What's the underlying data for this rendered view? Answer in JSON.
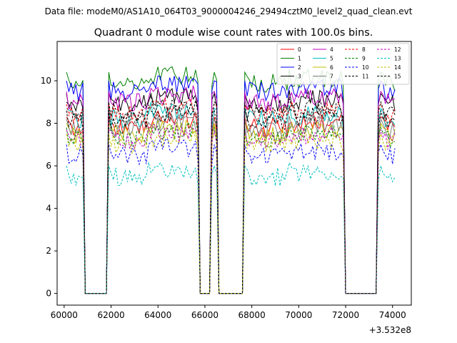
{
  "chart_data": {
    "type": "line",
    "suptitle": "Data file: modeM0/AS1A10_064T03_9000004246_29494cztM0_level2_quad_clean.evt",
    "title": "Quadrant 0 module wise count rates with 100.0s bins.",
    "xlabel": "",
    "ylabel": "",
    "x_offset_label": "+3.532e8",
    "xlim": [
      59700,
      74800
    ],
    "ylim": [
      -0.55,
      11.85
    ],
    "xticks": [
      60000,
      62000,
      64000,
      66000,
      68000,
      70000,
      72000,
      74000
    ],
    "xtick_labels": [
      "60000",
      "62000",
      "64000",
      "66000",
      "68000",
      "70000",
      "72000",
      "74000"
    ],
    "yticks": [
      0,
      2,
      4,
      6,
      8,
      10
    ],
    "ytick_labels": [
      "0",
      "2",
      "4",
      "6",
      "8",
      "10"
    ],
    "legend_position": "top-right",
    "segments": [
      [
        60100,
        60800
      ],
      [
        61900,
        65700
      ],
      [
        66300,
        66500
      ],
      [
        67700,
        71900
      ],
      [
        73400,
        74100
      ]
    ],
    "series": [
      {
        "name": "0",
        "color": "#ff0000",
        "dash": "solid",
        "level": 7.8
      },
      {
        "name": "1",
        "color": "#008000",
        "dash": "solid",
        "level": 9.9
      },
      {
        "name": "2",
        "color": "#0000ff",
        "dash": "solid",
        "level": 9.5
      },
      {
        "name": "3",
        "color": "#000000",
        "dash": "solid",
        "level": 8.9
      },
      {
        "name": "4",
        "color": "#bf00bf",
        "dash": "solid",
        "level": 9.0
      },
      {
        "name": "5",
        "color": "#00bfbf",
        "dash": "solid",
        "level": 8.2
      },
      {
        "name": "6",
        "color": "#bfbf00",
        "dash": "solid",
        "level": 7.5
      },
      {
        "name": "7",
        "color": "#7f7f7f",
        "dash": "solid",
        "level": 7.7
      },
      {
        "name": "8",
        "color": "#ff0000",
        "dash": "dashed",
        "level": 8.4
      },
      {
        "name": "9",
        "color": "#008000",
        "dash": "dashed",
        "level": 7.3
      },
      {
        "name": "10",
        "color": "#0000ff",
        "dash": "dashed",
        "level": 6.5
      },
      {
        "name": "11",
        "color": "#000000",
        "dash": "dashed",
        "level": 8.5
      },
      {
        "name": "12",
        "color": "#bf00bf",
        "dash": "dashed",
        "level": 7.2
      },
      {
        "name": "13",
        "color": "#00bfbf",
        "dash": "dashed",
        "level": 5.5
      },
      {
        "name": "14",
        "color": "#bfbf00",
        "dash": "dashed",
        "level": 7.0
      },
      {
        "name": "15",
        "color": "#000000",
        "dash": "dashed",
        "level": 8.1
      }
    ]
  }
}
